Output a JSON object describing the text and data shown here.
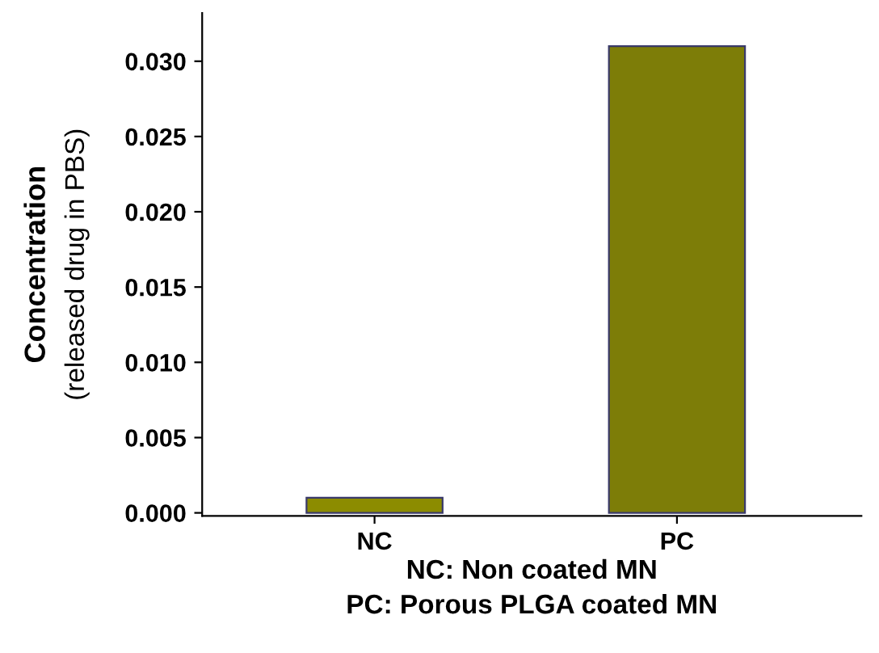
{
  "chart_data": {
    "type": "bar",
    "categories": [
      "NC",
      "PC"
    ],
    "values": [
      0.001,
      0.031
    ],
    "colors": [
      "#8c8c00",
      "#7d7d08"
    ],
    "ylabel": "Concentration\n(released drug in PBS)",
    "xlabel": "NC: Non coated MN\nPC: Porous PLGA coated MN",
    "ylim": [
      -0.0002,
      0.0332
    ],
    "yticks": [
      {
        "value": 0,
        "label": "0.000"
      },
      {
        "value": 0.005,
        "label": "0.005"
      },
      {
        "value": 0.01,
        "label": "0.010"
      },
      {
        "value": 0.015,
        "label": "0.015"
      },
      {
        "value": 0.02,
        "label": "0.020"
      },
      {
        "value": 0.025,
        "label": "0.025"
      },
      {
        "value": 0.03,
        "label": "0.030"
      }
    ],
    "grid": false,
    "legend": false
  }
}
